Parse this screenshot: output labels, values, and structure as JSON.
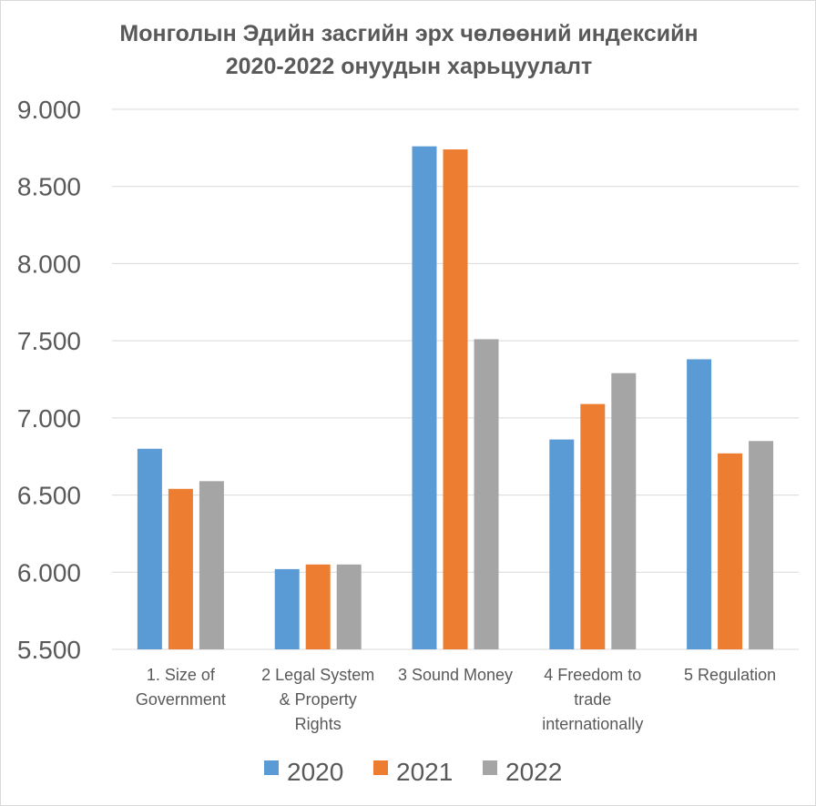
{
  "chart_data": {
    "type": "bar",
    "title_lines": [
      "Монголын Эдийн засгийн эрх чөлөөний индексийн",
      "2020-2022 онуудын харьцуулалт"
    ],
    "xlabel": "",
    "ylabel": "",
    "categories": [
      [
        "1. Size of",
        "Government"
      ],
      [
        "2 Legal System",
        "& Property",
        "Rights"
      ],
      [
        "3  Sound Money"
      ],
      [
        "4  Freedom to",
        "trade",
        "internationally"
      ],
      [
        "5  Regulation"
      ]
    ],
    "series": [
      {
        "name": "2020",
        "color": "#5B9BD5",
        "values": [
          6.8,
          6.02,
          8.76,
          6.86,
          7.38
        ]
      },
      {
        "name": "2021",
        "color": "#ED7D31",
        "values": [
          6.54,
          6.05,
          8.74,
          7.09,
          6.77
        ]
      },
      {
        "name": "2022",
        "color": "#A5A5A5",
        "values": [
          6.59,
          6.05,
          7.51,
          7.29,
          6.85
        ]
      }
    ],
    "ylim": [
      5.5,
      9.0
    ],
    "yticks": [
      5.5,
      6.0,
      6.5,
      7.0,
      7.5,
      8.0,
      8.5,
      9.0
    ],
    "ytick_labels": [
      "5.500",
      "6.000",
      "6.500",
      "7.000",
      "7.500",
      "8.000",
      "8.500",
      "9.000"
    ],
    "grid": true,
    "legend_position": "bottom"
  }
}
